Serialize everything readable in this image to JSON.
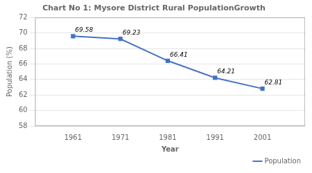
{
  "chart_data": {
    "type": "line",
    "title": "Chart No 1: Mysore District Rural PopulationGrowth",
    "x_label": "Year",
    "y_label": "Population (%)",
    "x": [
      1961,
      1971,
      1981,
      1991,
      2001
    ],
    "series": [
      {
        "name": "Population",
        "color": "#4472C4",
        "marker": "square",
        "values": [
          69.58,
          69.23,
          66.41,
          64.21,
          62.81
        ]
      }
    ],
    "xlim": [
      1953,
      2010
    ],
    "xticks": [
      1961,
      1971,
      1981,
      1991,
      2001
    ],
    "ylim": [
      58,
      72
    ],
    "yticks": [
      58,
      60,
      62,
      64,
      66,
      68,
      70,
      72
    ],
    "grid": "y",
    "legend": "lower right",
    "data_labels": true
  }
}
